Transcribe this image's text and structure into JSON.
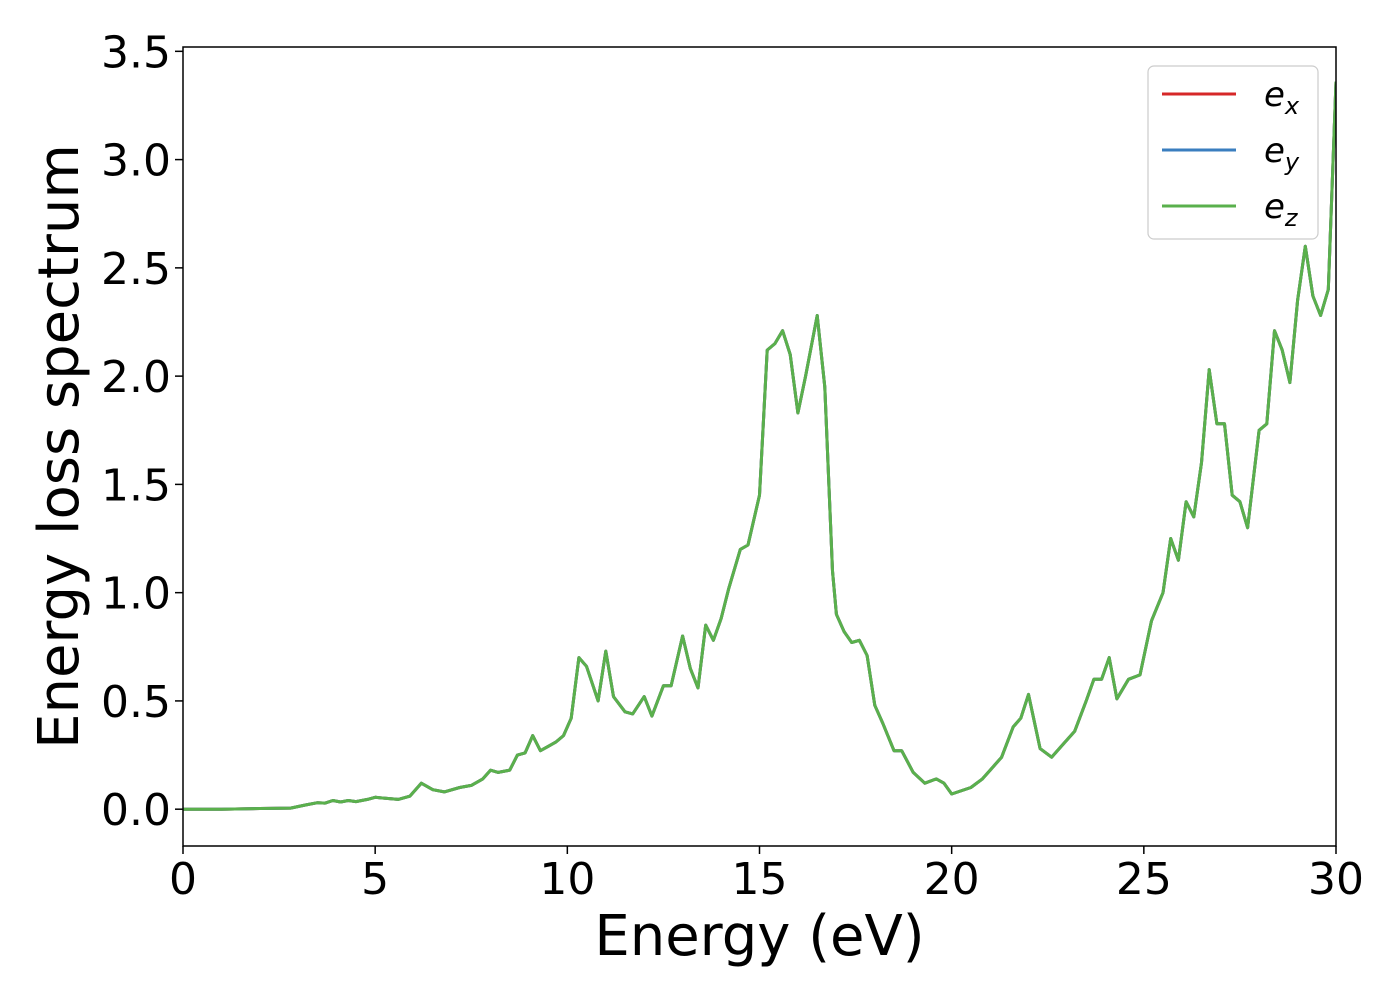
{
  "chart_data": {
    "type": "line",
    "title": "",
    "xlabel": "Energy (eV)",
    "ylabel": "Energy loss spectrum",
    "xlim": [
      0,
      30
    ],
    "ylim": [
      -0.17,
      3.52
    ],
    "xticks": [
      0,
      5,
      10,
      15,
      20,
      25,
      30
    ],
    "yticks": [
      0.0,
      0.5,
      1.0,
      1.5,
      2.0,
      2.5,
      3.0,
      3.5
    ],
    "xtick_labels": [
      "0",
      "5",
      "10",
      "15",
      "20",
      "25",
      "30"
    ],
    "ytick_labels": [
      "0.0",
      "0.5",
      "1.0",
      "1.5",
      "2.0",
      "2.5",
      "3.0",
      "3.5"
    ],
    "grid": false,
    "legend_position": "top-right",
    "series": [
      {
        "name": "e_x",
        "base": "e",
        "sub": "x",
        "color": "#d62728"
      },
      {
        "name": "e_y",
        "base": "e",
        "sub": "y",
        "color": "#3a7ebf"
      },
      {
        "name": "e_z",
        "base": "e",
        "sub": "z",
        "color": "#5ab04c"
      }
    ],
    "x": [
      0,
      1,
      2,
      2.8,
      3.2,
      3.5,
      3.7,
      3.9,
      4.1,
      4.3,
      4.5,
      4.8,
      5.0,
      5.3,
      5.6,
      5.9,
      6.2,
      6.5,
      6.8,
      7.2,
      7.5,
      7.8,
      8.0,
      8.2,
      8.5,
      8.7,
      8.9,
      9.1,
      9.3,
      9.5,
      9.7,
      9.9,
      10.1,
      10.3,
      10.5,
      10.8,
      11.0,
      11.2,
      11.5,
      11.7,
      12.0,
      12.2,
      12.5,
      12.7,
      13.0,
      13.2,
      13.4,
      13.6,
      13.8,
      14.0,
      14.2,
      14.5,
      14.7,
      15.0,
      15.2,
      15.4,
      15.6,
      15.8,
      16.0,
      16.2,
      16.5,
      16.7,
      16.9,
      17.0,
      17.2,
      17.4,
      17.6,
      17.8,
      18.0,
      18.2,
      18.5,
      18.7,
      19.0,
      19.3,
      19.6,
      19.8,
      20.0,
      20.5,
      20.8,
      21.0,
      21.3,
      21.6,
      21.8,
      22.0,
      22.3,
      22.6,
      22.9,
      23.2,
      23.5,
      23.7,
      23.9,
      24.1,
      24.3,
      24.6,
      24.9,
      25.2,
      25.5,
      25.7,
      25.9,
      26.1,
      26.3,
      26.5,
      26.7,
      26.9,
      27.1,
      27.3,
      27.5,
      27.7,
      28.0,
      28.2,
      28.4,
      28.6,
      28.8,
      29.0,
      29.2,
      29.4,
      29.6,
      29.8,
      30.0
    ],
    "y": [
      0,
      0,
      0.003,
      0.005,
      0.02,
      0.03,
      0.028,
      0.04,
      0.033,
      0.04,
      0.035,
      0.045,
      0.055,
      0.05,
      0.045,
      0.06,
      0.12,
      0.09,
      0.08,
      0.1,
      0.11,
      0.14,
      0.18,
      0.17,
      0.18,
      0.25,
      0.26,
      0.34,
      0.27,
      0.29,
      0.31,
      0.34,
      0.42,
      0.7,
      0.66,
      0.5,
      0.73,
      0.52,
      0.45,
      0.44,
      0.52,
      0.43,
      0.57,
      0.57,
      0.8,
      0.65,
      0.56,
      0.85,
      0.78,
      0.88,
      1.02,
      1.2,
      1.22,
      1.45,
      2.12,
      2.15,
      2.21,
      2.1,
      1.83,
      2.0,
      2.28,
      1.95,
      1.1,
      0.9,
      0.82,
      0.77,
      0.78,
      0.71,
      0.48,
      0.4,
      0.27,
      0.27,
      0.17,
      0.12,
      0.14,
      0.12,
      0.07,
      0.1,
      0.14,
      0.18,
      0.24,
      0.38,
      0.42,
      0.53,
      0.28,
      0.24,
      0.3,
      0.36,
      0.5,
      0.6,
      0.6,
      0.7,
      0.51,
      0.6,
      0.62,
      0.87,
      1.0,
      1.25,
      1.15,
      1.42,
      1.35,
      1.6,
      2.03,
      1.78,
      1.78,
      1.45,
      1.42,
      1.3,
      1.75,
      1.78,
      2.21,
      2.12,
      1.97,
      2.35,
      2.6,
      2.37,
      2.28,
      2.4,
      3.36
    ]
  }
}
